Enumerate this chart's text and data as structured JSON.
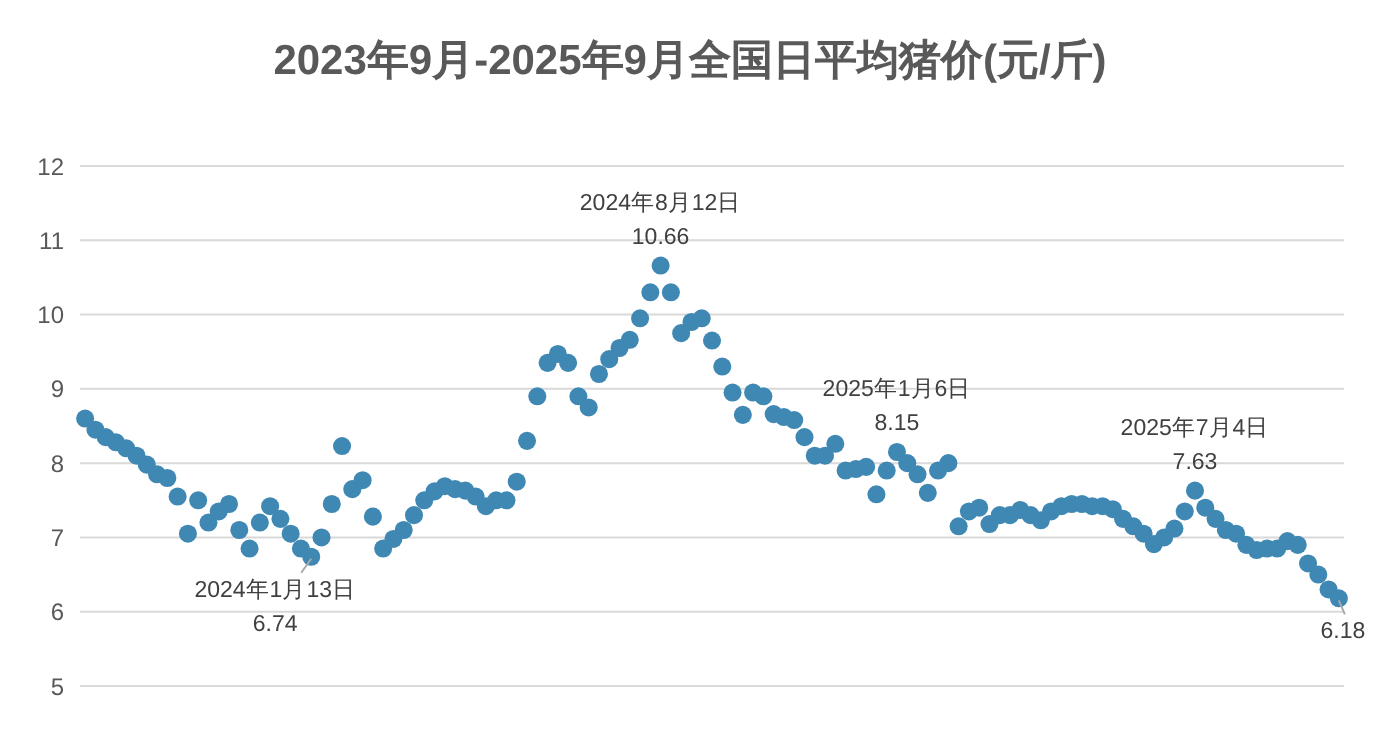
{
  "chart_data": {
    "type": "scatter",
    "title": "2023年9月-2025年9月全国日平均猪价(元/斤)",
    "categories": [
      null,
      null,
      null,
      null,
      null,
      null,
      null,
      null,
      null,
      null,
      null,
      null,
      null,
      null,
      null,
      null,
      null,
      null,
      null,
      null,
      null,
      null,
      null,
      null,
      null,
      null,
      null,
      null,
      null,
      null,
      null,
      null,
      null,
      null,
      null,
      null,
      null,
      null,
      null,
      null,
      null,
      null,
      null,
      null,
      null,
      null,
      null,
      null,
      null,
      null,
      null,
      null,
      null,
      null,
      null,
      null,
      null,
      null,
      null,
      null,
      null,
      null,
      null,
      null,
      null,
      null,
      null,
      null,
      null,
      null,
      null,
      null,
      null,
      null,
      null,
      null,
      null,
      null,
      null,
      null,
      null,
      null,
      null,
      null,
      null,
      null,
      null,
      null,
      null,
      null,
      null,
      null,
      null,
      null,
      null,
      null,
      null,
      null,
      null,
      null,
      null,
      null,
      null,
      null,
      null,
      null,
      null,
      null,
      null,
      null,
      null,
      null,
      null,
      null,
      null,
      null,
      null,
      null,
      null,
      null,
      null,
      null,
      null
    ],
    "values": [
      8.6,
      8.45,
      8.35,
      8.28,
      8.2,
      8.1,
      7.98,
      7.85,
      7.8,
      7.55,
      7.05,
      7.5,
      7.2,
      7.35,
      7.45,
      7.1,
      6.85,
      7.2,
      7.42,
      7.25,
      7.05,
      6.85,
      6.74,
      7.0,
      7.45,
      8.23,
      7.65,
      7.77,
      7.28,
      6.85,
      6.98,
      7.1,
      7.3,
      7.5,
      7.62,
      7.69,
      7.65,
      7.63,
      7.55,
      7.42,
      7.5,
      7.5,
      7.75,
      8.3,
      8.9,
      9.35,
      9.47,
      9.35,
      8.9,
      8.75,
      9.2,
      9.4,
      9.55,
      9.66,
      9.95,
      10.3,
      10.66,
      10.3,
      9.75,
      9.9,
      9.95,
      9.65,
      9.3,
      8.95,
      8.65,
      8.95,
      8.9,
      8.66,
      8.62,
      8.58,
      8.35,
      8.1,
      8.1,
      8.26,
      7.9,
      7.92,
      7.95,
      7.58,
      7.9,
      8.15,
      8.0,
      7.85,
      7.6,
      7.9,
      8.0,
      7.15,
      7.35,
      7.4,
      7.18,
      7.3,
      7.3,
      7.37,
      7.3,
      7.23,
      7.35,
      7.42,
      7.45,
      7.45,
      7.42,
      7.42,
      7.38,
      7.25,
      7.15,
      7.05,
      6.91,
      7.0,
      7.12,
      7.35,
      7.63,
      7.4,
      7.25,
      7.1,
      7.05,
      6.9,
      6.83,
      6.85,
      6.85,
      6.95,
      6.9,
      6.65,
      6.5,
      6.3,
      6.18
    ],
    "color": "#3f88b3",
    "marker": "circle",
    "ylim": [
      5,
      12
    ],
    "yticks": [
      5,
      6,
      7,
      8,
      9,
      10,
      11,
      12
    ],
    "grid": "y",
    "tick_labels": "y",
    "value_labels": [
      null,
      null,
      null,
      null,
      null,
      null,
      null,
      null,
      null,
      null,
      null,
      null,
      null,
      null,
      null,
      null,
      null,
      null,
      null,
      null,
      null,
      null,
      "2024年1月13日\n6.74",
      null,
      null,
      null,
      null,
      null,
      null,
      null,
      null,
      null,
      null,
      null,
      null,
      null,
      null,
      null,
      null,
      null,
      null,
      null,
      null,
      null,
      null,
      null,
      null,
      null,
      null,
      null,
      null,
      null,
      null,
      null,
      null,
      null,
      "2024年8月12日\n10.66",
      null,
      null,
      null,
      null,
      null,
      null,
      null,
      null,
      null,
      null,
      null,
      null,
      null,
      null,
      null,
      null,
      null,
      null,
      null,
      null,
      null,
      null,
      "2025年1月6日\n8.15",
      null,
      null,
      null,
      null,
      null,
      null,
      null,
      null,
      null,
      null,
      null,
      null,
      null,
      null,
      null,
      null,
      null,
      null,
      null,
      null,
      null,
      null,
      null,
      null,
      null,
      null,
      null,
      null,
      "2025年7月4日\n7.63",
      null,
      null,
      null,
      null,
      null,
      null,
      null,
      null,
      null,
      null,
      null,
      null,
      null,
      "6.18"
    ]
  }
}
